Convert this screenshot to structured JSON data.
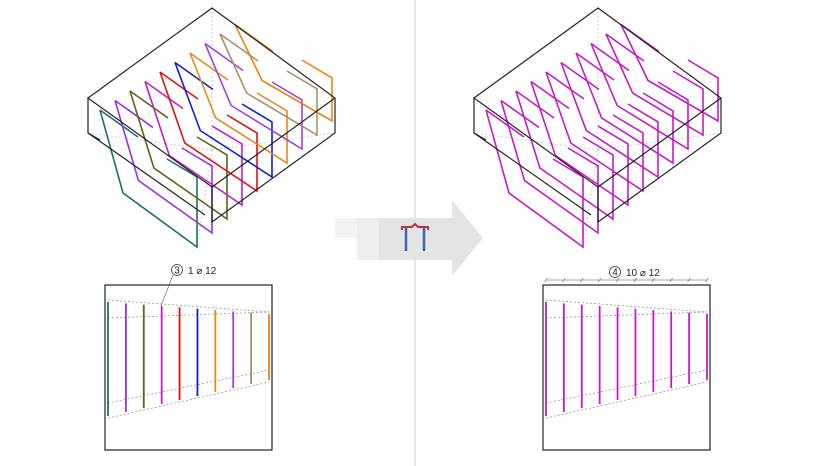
{
  "left": {
    "label_number": "3",
    "label_text": "1 ⌀ 12",
    "bar_colors": [
      "#1f6f6a",
      "#9b30d9",
      "#5c6414",
      "#c21fc2",
      "#e01010",
      "#1020d0",
      "#e38a18",
      "#a040e0",
      "#a88f6a",
      "#f08010"
    ]
  },
  "right": {
    "label_number": "4",
    "label_text": "10 ⌀ 12",
    "bar_color": "#c41cc4"
  },
  "arrow": {
    "icon": "stirrup-icon",
    "colors": {
      "arrow": "#e4e4e4",
      "stirrup_top": "#c0303a",
      "stirrup_legs": "#3a66b0"
    }
  },
  "divider_color": "#cccccc"
}
